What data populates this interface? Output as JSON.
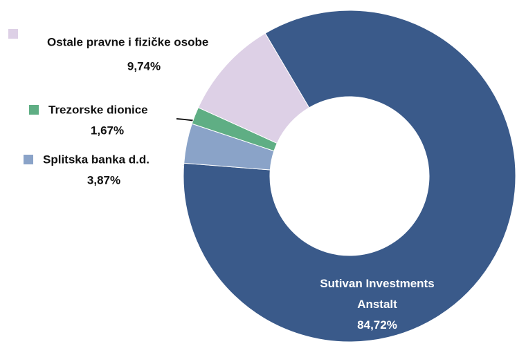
{
  "chart_data": {
    "type": "donut",
    "categories": [
      "Sutivan Investments Anstalt",
      "Splitska banka d.d.",
      "Trezorske dionice",
      "Ostale pravne i fizičke osobe"
    ],
    "values": [
      84.72,
      3.87,
      1.67,
      9.74
    ],
    "value_labels": [
      "84,72%",
      "3,87%",
      "1,67%",
      "9,74%"
    ],
    "colors": [
      "#3a5a8a",
      "#8aa3c8",
      "#5fae84",
      "#ddd0e6"
    ]
  }
}
